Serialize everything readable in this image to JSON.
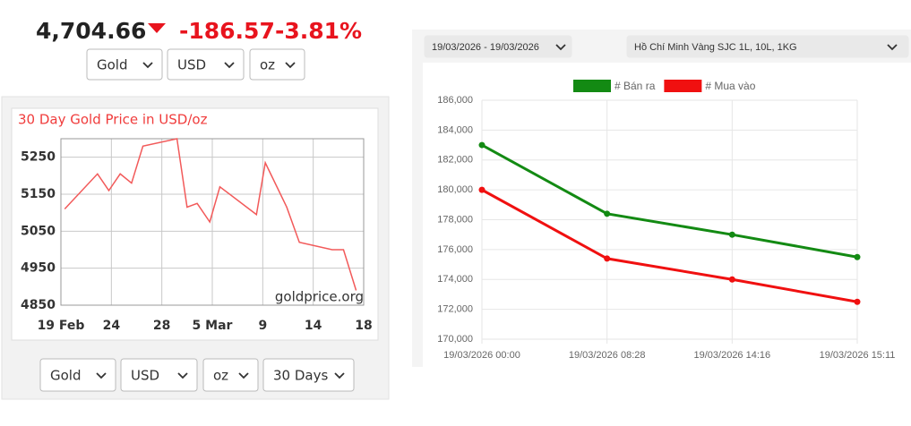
{
  "header": {
    "price": "4,704.66",
    "change": "-186.57",
    "change_percent": "-3.81%"
  },
  "top_selectors": [
    "Gold",
    "USD",
    "oz"
  ],
  "bottom_selectors": [
    "Gold",
    "USD",
    "oz",
    "30 Days"
  ],
  "filters": {
    "date_range": "19/03/2026 - 19/03/2026",
    "product": "Hồ Chí Minh Vàng SJC 1L, 10L, 1KG"
  },
  "chart_data": [
    {
      "type": "line",
      "title": "30 Day Gold Price in USD/oz",
      "watermark": "goldprice.org",
      "x": [
        0.3,
        2.9,
        3.8,
        4.7,
        5.6,
        6.5,
        9.2,
        10,
        10.8,
        11.8,
        12.6,
        15.5,
        16.2,
        17.9,
        18.9,
        21.5,
        22.4,
        23.4
      ],
      "series": [
        {
          "color": "#f25a5a",
          "values": [
            5110,
            5205,
            5160,
            5205,
            5180,
            5280,
            5300,
            5115,
            5125,
            5075,
            5170,
            5095,
            5235,
            5115,
            5020,
            5000,
            5000,
            4890
          ]
        }
      ],
      "xlim": [
        0,
        24
      ],
      "xticks": [
        {
          "value": 0,
          "label": "19 Feb"
        },
        {
          "value": 4,
          "label": "24"
        },
        {
          "value": 8,
          "label": "28"
        },
        {
          "value": 12,
          "label": "5 Mar"
        },
        {
          "value": 16,
          "label": "9"
        },
        {
          "value": 20,
          "label": "14"
        },
        {
          "value": 24,
          "label": "18"
        }
      ],
      "ylim": [
        4850,
        5300
      ],
      "yticks": [
        4850,
        4950,
        5050,
        5150,
        5250
      ],
      "grid": true
    },
    {
      "type": "line",
      "categories": [
        "19/03/2026 00:00",
        "19/03/2026 08:28",
        "19/03/2026 14:16",
        "19/03/2026 15:11"
      ],
      "series": [
        {
          "name": "# Bán ra",
          "color": "#138a13",
          "values": [
            183000,
            178400,
            177000,
            175500
          ]
        },
        {
          "name": "# Mua vào",
          "color": "#f01010",
          "values": [
            180000,
            175400,
            174000,
            172500
          ]
        }
      ],
      "ylim": [
        170000,
        186000
      ],
      "yticks": [
        {
          "value": 170000,
          "label": "170,000"
        },
        {
          "value": 172000,
          "label": "172,000"
        },
        {
          "value": 174000,
          "label": "174,000"
        },
        {
          "value": 176000,
          "label": "176,000"
        },
        {
          "value": 178000,
          "label": "178,000"
        },
        {
          "value": 180000,
          "label": "180,000"
        },
        {
          "value": 182000,
          "label": "182,000"
        },
        {
          "value": 184000,
          "label": "184,000"
        },
        {
          "value": 186000,
          "label": "186,000"
        }
      ],
      "grid": true,
      "legend": "top"
    }
  ]
}
